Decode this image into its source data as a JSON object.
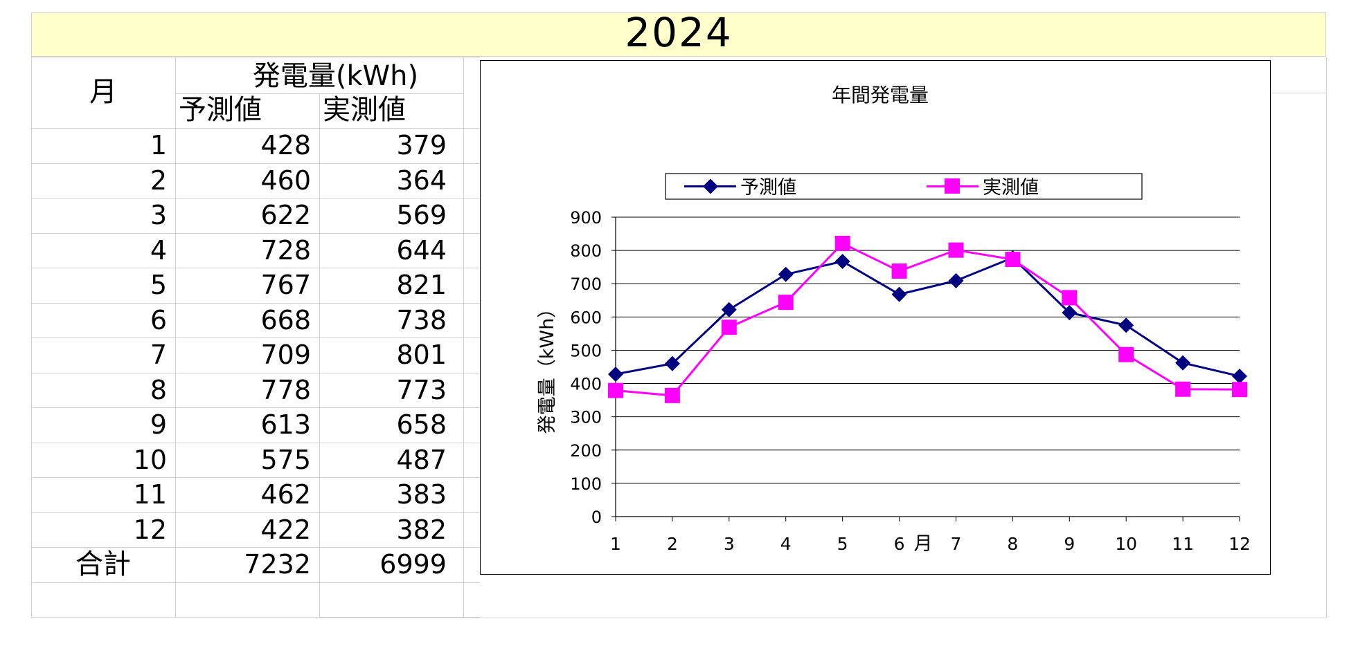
{
  "sheet": {
    "title": "2024",
    "table": {
      "month_header": "月",
      "generation_header": "発電量(kWh)",
      "forecast_header": "予測値",
      "actual_header": "実測値",
      "rows": [
        {
          "month": "1",
          "forecast": "428",
          "actual": "379"
        },
        {
          "month": "2",
          "forecast": "460",
          "actual": "364"
        },
        {
          "month": "3",
          "forecast": "622",
          "actual": "569"
        },
        {
          "month": "4",
          "forecast": "728",
          "actual": "644"
        },
        {
          "month": "5",
          "forecast": "767",
          "actual": "821"
        },
        {
          "month": "6",
          "forecast": "668",
          "actual": "738"
        },
        {
          "month": "7",
          "forecast": "709",
          "actual": "801"
        },
        {
          "month": "8",
          "forecast": "778",
          "actual": "773"
        },
        {
          "month": "9",
          "forecast": "613",
          "actual": "658"
        },
        {
          "month": "10",
          "forecast": "575",
          "actual": "487"
        },
        {
          "month": "11",
          "forecast": "462",
          "actual": "383"
        },
        {
          "month": "12",
          "forecast": "422",
          "actual": "382"
        }
      ],
      "total_label": "合計",
      "total_forecast": "7232",
      "total_actual": "6999"
    }
  },
  "chart_data": {
    "type": "line",
    "title": "年間発電量",
    "xlabel": "月",
    "ylabel": "発電量（kWh）",
    "categories": [
      "1",
      "2",
      "3",
      "4",
      "5",
      "6",
      "7",
      "8",
      "9",
      "10",
      "11",
      "12"
    ],
    "ylim": [
      0,
      900
    ],
    "yticks": [
      "0",
      "100",
      "200",
      "300",
      "400",
      "500",
      "600",
      "700",
      "800",
      "900"
    ],
    "grid": true,
    "legend_position": "top",
    "series": [
      {
        "name": "予測値",
        "marker": "diamond",
        "color": "#000080",
        "values": [
          428,
          460,
          622,
          728,
          767,
          668,
          709,
          778,
          613,
          575,
          462,
          422
        ]
      },
      {
        "name": "実測値",
        "marker": "square",
        "color": "#ff00ff",
        "values": [
          379,
          364,
          569,
          644,
          821,
          738,
          801,
          773,
          658,
          487,
          383,
          382
        ]
      }
    ]
  }
}
